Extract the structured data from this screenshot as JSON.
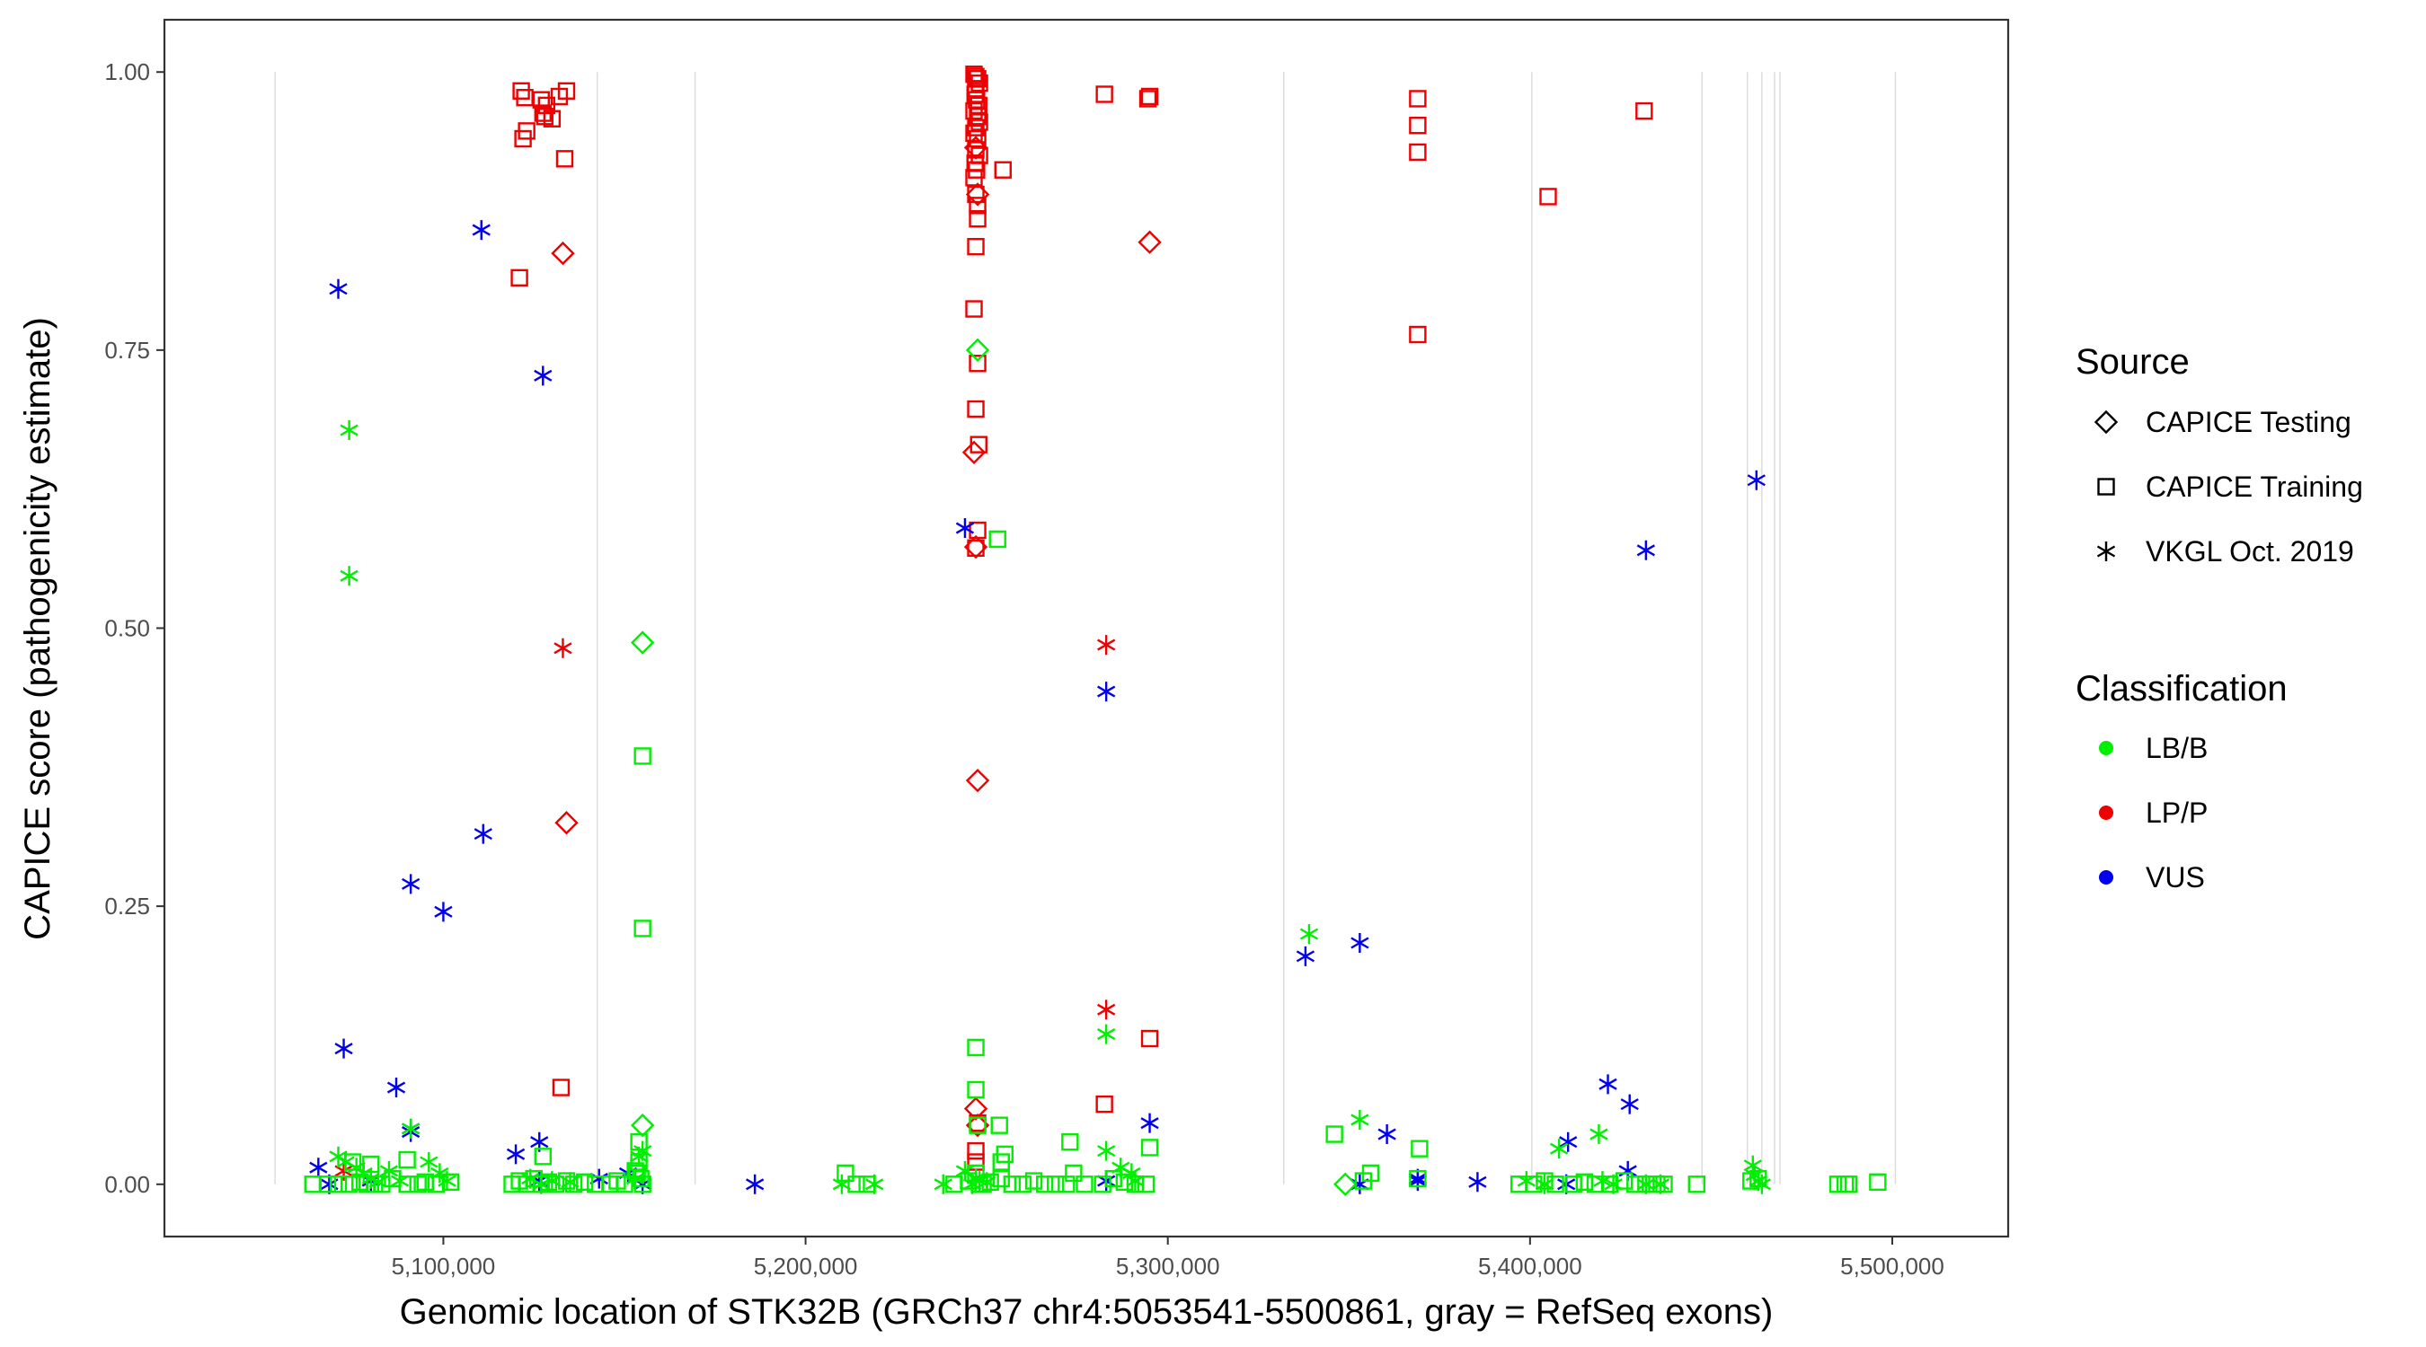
{
  "chart_data": {
    "type": "scatter",
    "title": "",
    "xlabel": "Genomic location of STK32B (GRCh37 chr4:5053541-5500861, gray = RefSeq exons)",
    "ylabel": "CAPICE score (pathogenicity estimate)",
    "xlim": [
      5023000,
      5532000
    ],
    "ylim": [
      -0.047,
      1.047
    ],
    "x_ticks": [
      5100000,
      5200000,
      5300000,
      5400000,
      5500000
    ],
    "x_tick_labels": [
      "5,100,000",
      "5,200,000",
      "5,300,000",
      "5,400,000",
      "5,500,000"
    ],
    "y_ticks": [
      0,
      0.25,
      0.5,
      0.75,
      1.0
    ],
    "y_tick_labels": [
      "0.00",
      "0.25",
      "0.50",
      "0.75",
      "1.00"
    ],
    "grid": false,
    "exon_lines": [
      5053541,
      5142500,
      5169500,
      5332000,
      5400500,
      5447500,
      5460000,
      5464000,
      5467500,
      5469000,
      5500861
    ],
    "legend_position": "right",
    "legends": [
      {
        "title": "Source",
        "kind": "shape",
        "items": [
          {
            "label": "CAPICE Testing",
            "shape": "diamond"
          },
          {
            "label": "CAPICE Training",
            "shape": "square"
          },
          {
            "label": "VKGL Oct. 2019",
            "shape": "asterisk"
          }
        ]
      },
      {
        "title": "Classification",
        "kind": "color",
        "items": [
          {
            "label": "LB/B",
            "color": "#00ee00"
          },
          {
            "label": "LP/P",
            "color": "#ee0000"
          },
          {
            "label": "VUS",
            "color": "#0000ee"
          }
        ]
      }
    ],
    "colors": {
      "LB/B": "#00ee00",
      "LP/P": "#ee0000",
      "VUS": "#0000ee"
    },
    "series": [
      {
        "source": "CAPICE Training",
        "classification": "LP/P",
        "x": [
          5121500,
          5122500,
          5123000,
          5122000,
          5127000,
          5128500,
          5130000,
          5132000,
          5134000,
          5127500,
          5128000,
          5121000,
          5133500,
          5132500,
          5246500,
          5247000,
          5247500,
          5248000,
          5247000,
          5246800,
          5247200,
          5247800,
          5246500,
          5247500,
          5248000,
          5247000,
          5246500,
          5247500,
          5247000,
          5248000,
          5246800,
          5247200,
          5246500,
          5247000,
          5247500,
          5247500,
          5254500,
          5247000,
          5246500,
          5247500,
          5247000,
          5247800,
          5247500,
          5247000,
          5247500,
          5247000,
          5282500,
          5294500,
          5295000,
          5369000,
          5369000,
          5369000,
          5431500,
          5405000,
          5369000,
          5282500,
          5295000,
          5247000
        ],
        "y": [
          0.983,
          0.977,
          0.947,
          0.94,
          0.975,
          0.97,
          0.958,
          0.978,
          0.983,
          0.963,
          0.96,
          0.815,
          0.922,
          0.087,
          0.998,
          0.996,
          0.994,
          0.99,
          0.985,
          0.98,
          0.975,
          0.97,
          0.965,
          0.96,
          0.955,
          0.95,
          0.945,
          0.94,
          0.93,
          0.925,
          0.918,
          0.912,
          0.905,
          0.89,
          0.88,
          0.868,
          0.912,
          0.843,
          0.787,
          0.738,
          0.697,
          0.665,
          0.588,
          0.572,
          0.055,
          0.02,
          0.98,
          0.976,
          0.978,
          0.976,
          0.952,
          0.928,
          0.965,
          0.888,
          0.764,
          0.072,
          0.131,
          0.03
        ]
      },
      {
        "source": "CAPICE Testing",
        "classification": "LP/P",
        "x": [
          5133000,
          5134000,
          5247000,
          5247500,
          5247000,
          5246500,
          5247500,
          5247000,
          5247500,
          5295000
        ],
        "y": [
          0.837,
          0.325,
          0.932,
          0.89,
          0.573,
          0.658,
          0.363,
          0.068,
          0.053,
          0.847
        ]
      },
      {
        "source": "VKGL Oct. 2019",
        "classification": "LP/P",
        "x": [
          5133000,
          5283000,
          5283000,
          5072500
        ],
        "y": [
          0.482,
          0.485,
          0.157,
          0.012
        ]
      },
      {
        "source": "VKGL Oct. 2019",
        "classification": "VUS",
        "x": [
          5071000,
          5110500,
          5127500,
          5111000,
          5091000,
          5100000,
          5072500,
          5087000,
          5091000,
          5091000,
          5065500,
          5068500,
          5080000,
          5120000,
          5126500,
          5126500,
          5143000,
          5151000,
          5155000,
          5244000,
          5186000,
          5283000,
          5283000,
          5295000,
          5338000,
          5353000,
          5353000,
          5360500,
          5369000,
          5369000,
          5385500,
          5410500,
          5421500,
          5427500,
          5410000,
          5427000,
          5462500,
          5432000
        ],
        "y": [
          0.805,
          0.858,
          0.727,
          0.315,
          0.27,
          0.245,
          0.122,
          0.087,
          0.05,
          0.047,
          0.015,
          0.0,
          0.003,
          0.027,
          0.038,
          0.003,
          0.005,
          0.01,
          0.0,
          0.59,
          0.0,
          0.443,
          0.003,
          0.055,
          0.205,
          0.217,
          0.0,
          0.045,
          0.005,
          0.003,
          0.002,
          0.038,
          0.09,
          0.072,
          0.0,
          0.012,
          0.633,
          0.57
        ]
      },
      {
        "source": "VKGL Oct. 2019",
        "classification": "LB/B",
        "x": [
          5074000,
          5074000,
          5071000,
          5073000,
          5076000,
          5078000,
          5080000,
          5082000,
          5085000,
          5088000,
          5091000,
          5096000,
          5099000,
          5101000,
          5124000,
          5127000,
          5130000,
          5135000,
          5153000,
          5154000,
          5155000,
          5210000,
          5219000,
          5238000,
          5244000,
          5246000,
          5247000,
          5248000,
          5250000,
          5283000,
          5283000,
          5287000,
          5290000,
          5291000,
          5339000,
          5353000,
          5399000,
          5404000,
          5408000,
          5419000,
          5420000,
          5423000,
          5432000,
          5436000,
          5461500,
          5462000,
          5463000,
          5464000
        ],
        "y": [
          0.678,
          0.547,
          0.025,
          0.02,
          0.015,
          0.01,
          0.005,
          0.002,
          0.012,
          0.003,
          0.05,
          0.02,
          0.01,
          0.003,
          0.005,
          0.0,
          0.003,
          0.002,
          0.005,
          0.025,
          0.03,
          0.0,
          0.0,
          0.0,
          0.012,
          0.0,
          0.005,
          0.003,
          0.002,
          0.135,
          0.03,
          0.015,
          0.01,
          0.003,
          0.225,
          0.058,
          0.003,
          0.0,
          0.032,
          0.045,
          0.003,
          0.0,
          0.0,
          0.0,
          0.017,
          0.008,
          0.003,
          0.0
        ]
      },
      {
        "source": "CAPICE Training",
        "classification": "LB/B",
        "x": [
          5155000,
          5155000,
          5154000,
          5253000,
          5247000,
          5247000,
          5247500,
          5253500,
          5255000,
          5254000,
          5248000,
          5064000,
          5068000,
          5071000,
          5074000,
          5077000,
          5079000,
          5081000,
          5083000,
          5086000,
          5090000,
          5093000,
          5095000,
          5098000,
          5102000,
          5075000,
          5080000,
          5090000,
          5119000,
          5121000,
          5123000,
          5125000,
          5127000,
          5129000,
          5131000,
          5134000,
          5136000,
          5139000,
          5142000,
          5146000,
          5148000,
          5150000,
          5153000,
          5154000,
          5155000,
          5153500,
          5154500,
          5127500,
          5211000,
          5214000,
          5217000,
          5241000,
          5245000,
          5247000,
          5249000,
          5251000,
          5254000,
          5257000,
          5260000,
          5263000,
          5266000,
          5269000,
          5272000,
          5274000,
          5277000,
          5273000,
          5282000,
          5285000,
          5288000,
          5291000,
          5294000,
          5295000,
          5346000,
          5354000,
          5356000,
          5369500,
          5369000,
          5397000,
          5401000,
          5404000,
          5407000,
          5412000,
          5415000,
          5418000,
          5422000,
          5426000,
          5429000,
          5432000,
          5435000,
          5437000,
          5446000,
          5461000,
          5463000,
          5485000,
          5487000,
          5488000,
          5496000
        ],
        "y": [
          0.385,
          0.23,
          0.038,
          0.58,
          0.123,
          0.085,
          0.053,
          0.053,
          0.027,
          0.02,
          0.0,
          0.0,
          0.0,
          0.0,
          0.0,
          0.002,
          0.0,
          0.0,
          0.0,
          0.005,
          0.0,
          0.0,
          0.002,
          0.0,
          0.002,
          0.02,
          0.018,
          0.022,
          0.0,
          0.003,
          0.0,
          0.005,
          0.0,
          0.002,
          0.0,
          0.003,
          0.0,
          0.002,
          0.0,
          0.0,
          0.003,
          0.0,
          0.012,
          0.02,
          0.0,
          0.01,
          0.005,
          0.025,
          0.01,
          0.0,
          0.0,
          0.0,
          0.003,
          0.01,
          0.0,
          0.002,
          0.005,
          0.0,
          0.0,
          0.003,
          0.0,
          0.0,
          0.0,
          0.01,
          0.0,
          0.038,
          0.0,
          0.005,
          0.002,
          0.0,
          0.0,
          0.033,
          0.045,
          0.003,
          0.01,
          0.032,
          0.005,
          0.0,
          0.0,
          0.003,
          0.0,
          0.0,
          0.002,
          0.0,
          0.0,
          0.003,
          0.0,
          0.0,
          0.0,
          0.0,
          0.0,
          0.003,
          0.005,
          0.0,
          0.0,
          0.0,
          0.002
        ]
      },
      {
        "source": "CAPICE Testing",
        "classification": "LB/B",
        "x": [
          5155000,
          5155000,
          5247500,
          5349000
        ],
        "y": [
          0.487,
          0.053,
          0.75,
          0.0
        ]
      }
    ]
  }
}
